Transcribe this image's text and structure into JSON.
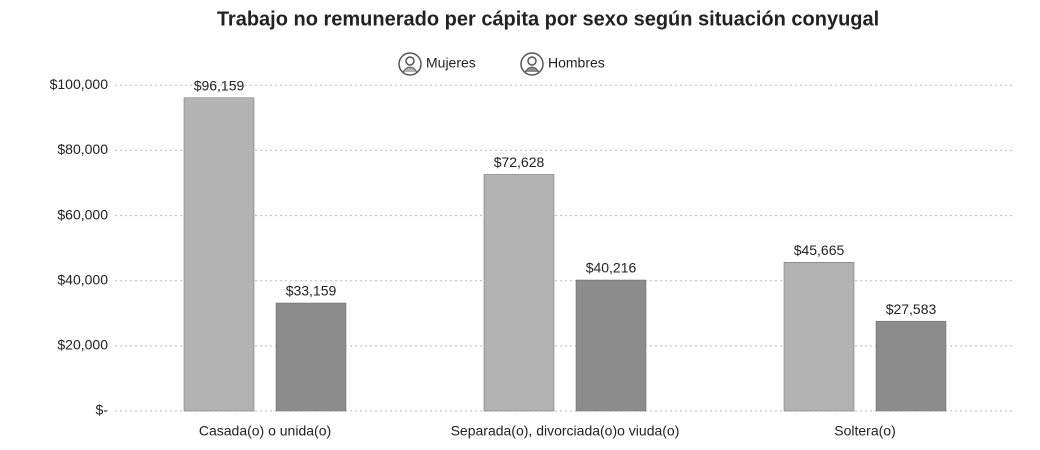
{
  "chart_data": {
    "type": "bar",
    "title": "Trabajo no remunerado per cápita por sexo según situación conyugal",
    "categories": [
      "Casada(o) o unida(o)",
      "Separada(o), divorciada(o)o viuda(o)",
      "Soltera(o)"
    ],
    "series": [
      {
        "name": "Mujeres",
        "color": "#b3b3b3",
        "values": [
          96159,
          72628,
          45665
        ],
        "value_labels": [
          "$96,159",
          "$72,628",
          "$45,665"
        ]
      },
      {
        "name": "Hombres",
        "color": "#8c8c8c",
        "values": [
          33159,
          40216,
          27583
        ],
        "value_labels": [
          "$33,159",
          "$40,216",
          "$27,583"
        ]
      }
    ],
    "ylim": [
      0,
      105000
    ],
    "yticks": [
      {
        "value": 0,
        "label": "$-"
      },
      {
        "value": 20000,
        "label": "$20,000"
      },
      {
        "value": 40000,
        "label": "$40,000"
      },
      {
        "value": 60000,
        "label": "$60,000"
      },
      {
        "value": 80000,
        "label": "$80,000"
      },
      {
        "value": 100000,
        "label": "$100,000"
      }
    ],
    "grid": true,
    "legend": "top"
  }
}
